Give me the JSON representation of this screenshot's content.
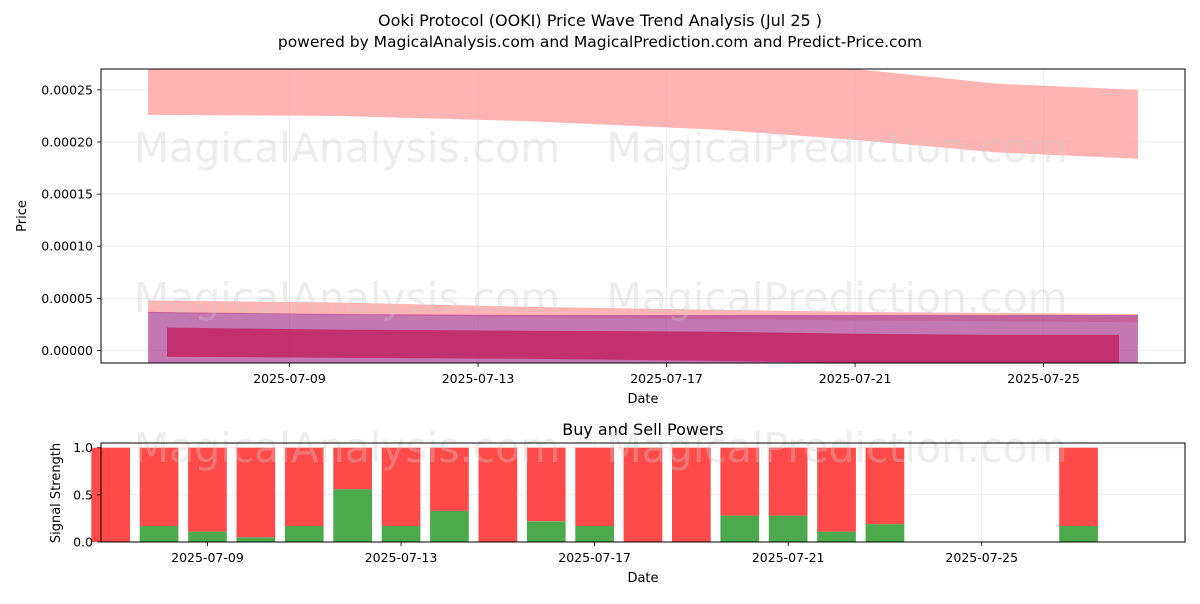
{
  "title_line1": "Ooki Protocol (OOKI) Price Wave Trend Analysis (Jul 25 )",
  "title_line2": "powered by MagicalAnalysis.com and MagicalPrediction.com and Predict-Price.com",
  "watermarks": [
    "MagicalAnalysis.com",
    "MagicalPrediction.com"
  ],
  "chart_data": [
    {
      "type": "area",
      "xlabel": "Date",
      "ylabel": "Price",
      "xlim": [
        "2025-07-05",
        "2025-07-28"
      ],
      "ylim": [
        -1.2e-05,
        0.00027
      ],
      "x_ticks": [
        "2025-07-09",
        "2025-07-13",
        "2025-07-17",
        "2025-07-21",
        "2025-07-25"
      ],
      "y_ticks": [
        "0.00000",
        "0.00005",
        "0.00010",
        "0.00015",
        "0.00020",
        "0.00025"
      ],
      "y_tick_values": [
        0,
        5e-05,
        0.0001,
        0.00015,
        0.0002,
        0.00025
      ],
      "grid": true,
      "bands": [
        {
          "color": "#ff9999",
          "opacity": 0.75,
          "x": [
            "2025-07-06",
            "2025-07-10",
            "2025-07-14",
            "2025-07-18",
            "2025-07-21",
            "2025-07-24",
            "2025-07-27"
          ],
          "upper": [
            0.000295,
            0.000294,
            0.00029,
            0.000283,
            0.00027,
            0.000256,
            0.00025
          ],
          "lower": [
            0.000226,
            0.000225,
            0.00022,
            0.000212,
            0.000202,
            0.00019,
            0.000184
          ]
        },
        {
          "color": "#ff9999",
          "opacity": 0.75,
          "x": [
            "2025-07-06",
            "2025-07-10",
            "2025-07-14",
            "2025-07-18",
            "2025-07-21",
            "2025-07-24",
            "2025-07-27"
          ],
          "upper": [
            4.8e-05,
            4.6e-05,
            4.2e-05,
            3.9e-05,
            3.7e-05,
            3.6e-05,
            3.5e-05
          ],
          "lower": [
            3.6e-05,
            3.4e-05,
            3.2e-05,
            3e-05,
            2.9e-05,
            2.8e-05,
            2.7e-05
          ]
        },
        {
          "color": "#b04a96",
          "opacity": 0.75,
          "x": [
            "2025-07-06",
            "2025-07-10",
            "2025-07-14",
            "2025-07-18",
            "2025-07-21",
            "2025-07-24",
            "2025-07-27"
          ],
          "upper": [
            3.7e-05,
            3.5e-05,
            3.4e-05,
            3.4e-05,
            3.4e-05,
            3.4e-05,
            3.4e-05
          ],
          "lower": [
            -1.2e-05,
            -1.2e-05,
            -1.2e-05,
            -1.2e-05,
            -1.2e-05,
            -1.2e-05,
            -1.2e-05
          ]
        },
        {
          "color": "#c2185b",
          "opacity": 0.75,
          "x": [
            "2025-07-06.4",
            "2025-07-10",
            "2025-07-14",
            "2025-07-18",
            "2025-07-21",
            "2025-07-24",
            "2025-07-26.6"
          ],
          "upper": [
            2.2e-05,
            2e-05,
            1.9e-05,
            1.8e-05,
            1.6e-05,
            1.5e-05,
            1.5e-05
          ],
          "lower": [
            -6e-06,
            -7e-06,
            -8e-06,
            -1e-05,
            -1.2e-05,
            -1.2e-05,
            -1.2e-05
          ]
        }
      ]
    },
    {
      "type": "bar",
      "title": "Buy and Sell Powers",
      "xlabel": "Date",
      "ylabel": "Signal Strength",
      "xlim": [
        "2025-07-06.8",
        "2025-07-29.2"
      ],
      "ylim": [
        0,
        1.05
      ],
      "x_ticks": [
        "2025-07-09",
        "2025-07-13",
        "2025-07-17",
        "2025-07-21",
        "2025-07-25"
      ],
      "y_ticks": [
        "0.0",
        "0.5",
        "1.0"
      ],
      "y_tick_values": [
        0,
        0.5,
        1.0
      ],
      "grid": true,
      "colors": {
        "buy": "#4caa4c",
        "sell": "#ff4a4a"
      },
      "dates": [
        "2025-07-07",
        "2025-07-08",
        "2025-07-09",
        "2025-07-10",
        "2025-07-11",
        "2025-07-12",
        "2025-07-13",
        "2025-07-14",
        "2025-07-15",
        "2025-07-16",
        "2025-07-17",
        "2025-07-18",
        "2025-07-19",
        "2025-07-20",
        "2025-07-21",
        "2025-07-22",
        "2025-07-23",
        "2025-07-27"
      ],
      "buy": [
        0.0,
        0.17,
        0.11,
        0.05,
        0.17,
        0.56,
        0.17,
        0.33,
        0.0,
        0.22,
        0.17,
        0.0,
        0.0,
        0.28,
        0.28,
        0.11,
        0.19,
        0.17
      ],
      "sell": [
        1.0,
        0.83,
        0.89,
        0.95,
        0.83,
        0.44,
        0.83,
        0.67,
        1.0,
        0.78,
        0.83,
        1.0,
        1.0,
        0.72,
        0.72,
        0.89,
        0.81,
        0.83
      ]
    }
  ]
}
